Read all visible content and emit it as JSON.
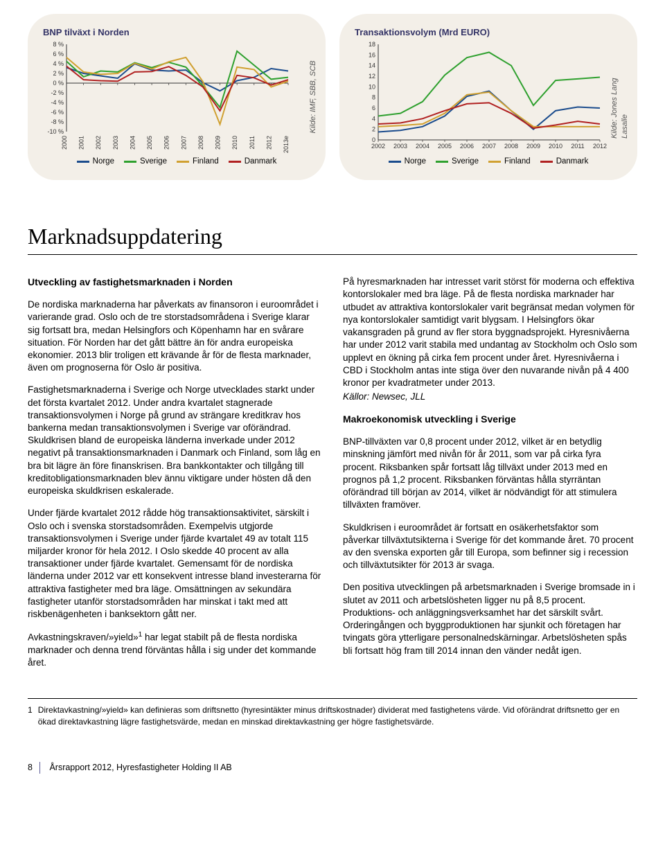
{
  "chart1": {
    "title": "BNP tilväxt i Norden",
    "source": "Kilde: IMF, SBB, SCB",
    "ylabels": [
      "8 %",
      "6 %",
      "4 %",
      "2 %",
      "0 %",
      "-2 %",
      "-4 %",
      "-6 %",
      "-8 %",
      "-10 %"
    ],
    "ymin": -10,
    "ymax": 8,
    "ystep": 2,
    "xlabels": [
      "2000",
      "2001",
      "2002",
      "2003",
      "2004",
      "2005",
      "2006",
      "2007",
      "2008",
      "2009",
      "2010",
      "2011",
      "2012",
      "2013e"
    ],
    "series": [
      {
        "name": "Norge",
        "color": "#1a4b8c",
        "values": [
          3.2,
          2.0,
          1.5,
          1.0,
          4.0,
          2.7,
          2.5,
          2.7,
          0.1,
          -1.6,
          0.5,
          1.2,
          3.0,
          2.5
        ]
      },
      {
        "name": "Sverige",
        "color": "#2ea02e",
        "values": [
          4.5,
          1.3,
          2.5,
          2.3,
          4.2,
          3.2,
          4.3,
          3.3,
          -0.6,
          -5.0,
          6.6,
          3.7,
          0.8,
          1.2
        ]
      },
      {
        "name": "Finland",
        "color": "#d0a030",
        "values": [
          5.3,
          2.3,
          1.8,
          2.0,
          4.1,
          2.9,
          4.4,
          5.3,
          0.3,
          -8.5,
          3.3,
          2.8,
          -0.8,
          0.4
        ]
      },
      {
        "name": "Danmark",
        "color": "#b02020",
        "values": [
          3.5,
          0.7,
          0.5,
          0.4,
          2.3,
          2.4,
          3.4,
          1.6,
          -0.8,
          -5.7,
          1.6,
          1.1,
          -0.4,
          0.7
        ]
      }
    ],
    "background_color": "#f3efe8",
    "grid_color": "#b8b2a4",
    "axis_color": "#333333",
    "label_fontsize": 9
  },
  "chart2": {
    "title": "Transaktionsvolym (Mrd EURO)",
    "source": "Kilde: Jones Lang Lasalle",
    "ylabels": [
      "18",
      "16",
      "14",
      "12",
      "10",
      "8",
      "6",
      "4",
      "2",
      "0"
    ],
    "ymin": 0,
    "ymax": 18,
    "ystep": 2,
    "xlabels": [
      "2002",
      "2003",
      "2004",
      "2005",
      "2006",
      "2007",
      "2008",
      "2009",
      "2010",
      "2011",
      "2012"
    ],
    "series": [
      {
        "name": "Norge",
        "color": "#1a4b8c",
        "values": [
          1.5,
          1.8,
          2.5,
          4.5,
          8.2,
          9.2,
          5.5,
          2.0,
          5.5,
          6.2,
          6.0
        ]
      },
      {
        "name": "Sverige",
        "color": "#2ea02e",
        "values": [
          4.5,
          5.0,
          7.2,
          12.2,
          15.5,
          16.5,
          14.0,
          6.5,
          11.2,
          11.5,
          11.8
        ]
      },
      {
        "name": "Finland",
        "color": "#d0a030",
        "values": [
          2.5,
          2.7,
          3.0,
          5.0,
          8.5,
          9.0,
          5.5,
          2.5,
          2.5,
          2.5,
          2.5
        ]
      },
      {
        "name": "Danmark",
        "color": "#b02020",
        "values": [
          3.0,
          3.2,
          4.0,
          5.5,
          6.8,
          7.0,
          5.0,
          2.2,
          2.8,
          3.5,
          3.0
        ]
      }
    ],
    "background_color": "#f3efe8",
    "grid_color": "#b8b2a4",
    "axis_color": "#333333",
    "label_fontsize": 9
  },
  "heading": "Marknadsuppdatering",
  "left_col": {
    "subhead": "Utveckling av fastighetsmarknaden i Norden",
    "p1": "De nordiska marknaderna har påverkats av finansoron i euroområdet i varierande grad. Oslo och de tre storstadsområdena i Sverige klarar sig fortsatt bra, medan Helsingfors och Köpenhamn har en svårare situation. För Norden har det gått bättre än för andra europeiska ekonomier. 2013 blir troligen ett krävande år för de flesta marknader, även om prognoserna för Oslo är positiva.",
    "p2": "Fastighetsmarknaderna i Sverige och Norge utvecklades starkt under det första kvartalet 2012. Under andra kvartalet stagnerade transaktionsvolymen i Norge på grund av strängare kreditkrav hos bankerna medan transaktionsvolymen i Sverige var oförändrad. Skuldkrisen bland de europeiska länderna inverkade under 2012 negativt på transaktionsmarknaden i Danmark och Finland, som låg en bra bit lägre än före finanskrisen. Bra bankkontakter och tillgång till kreditobligationsmarknaden blev ännu viktigare under hösten då den europeiska skuldkrisen eskalerade.",
    "p3": "Under fjärde kvartalet 2012 rådde hög transaktionsaktivitet, särskilt i Oslo och i svenska storstadsområden. Exempelvis utgjorde transaktionsvolymen i Sverige under fjärde kvartalet 49 av totalt 115 miljarder kronor för hela 2012. I Oslo skedde 40 procent av alla transaktioner under fjärde kvartalet. Gemensamt för de nordiska länderna under 2012 var ett konsekvent intresse bland investerarna för attraktiva fastigheter med bra läge. Omsättningen av sekundära fastigheter utanför storstadsområden har minskat i takt med att riskbenägenheten i banksektorn gått ner.",
    "p4_html": "Avkastningskraven/»yield»<sup>1</sup> har legat stabilt på de flesta nordiska marknader och denna trend förväntas hålla i sig under det kommande året."
  },
  "right_col": {
    "p1": "På hyresmarknaden har intresset varit störst för moderna och effektiva kontorslokaler med bra läge. På de flesta nordiska marknader har utbudet av attraktiva kontorslokaler varit begränsat medan volymen för nya kontorslokaler samtidigt varit blygsam. I Helsingfors ökar vakansgraden på grund av fler stora byggnadsprojekt. Hyresnivåerna har under 2012 varit stabila med undantag av Stockholm och Oslo som upplevt en ökning på cirka fem procent under året. Hyresnivåerna i CBD i Stockholm antas inte stiga över den nuvarande nivån på 4 400 kronor per kvadratmeter under 2013.",
    "p1_tail": "Källor: Newsec, JLL",
    "subhead2": "Makroekonomisk utveckling i Sverige",
    "p2": "BNP-tillväxten var 0,8 procent under 2012, vilket är en betydlig minskning jämfört med nivån för år 2011, som var på cirka fyra procent. Riksbanken spår fortsatt låg tillväxt under 2013 med en prognos på 1,2 procent. Riksbanken förväntas hålla styrräntan oförändrad till början av 2014, vilket är nödvändigt för att stimulera tillväxten framöver.",
    "p3": "Skuldkrisen i euroområdet är fortsatt en osäkerhetsfaktor som påverkar tillväxtutsikterna i Sverige för det kommande året. 70 procent av den svenska exporten går till Europa, som befinner sig i recession och tillväxtutsikter för 2013 är svaga.",
    "p4": "Den positiva utvecklingen på arbetsmarknaden i Sverige bromsade in i slutet av 2011 och arbetslösheten ligger nu på 8,5 procent. Produktions- och anläggningsverksamhet har det särskilt svårt. Orderingången och byggproduktionen har sjunkit och företagen har tvingats göra ytterligare personalnedskärningar. Arbetslösheten spås bli fortsatt hög fram till 2014 innan den vänder nedåt igen."
  },
  "footnote": {
    "num": "1",
    "text": "Direktavkastning/»yield» kan definieras som driftsnetto (hyresintäkter minus driftskostnader) dividerat med fastighetens värde. Vid oförändrat driftsnetto ger en ökad direktavkastning lägre fastighetsvärde, medan en minskad direktavkastning ger högre fastighetsvärde."
  },
  "footer": {
    "page": "8",
    "doc": "Årsrapport 2012, Hyresfastigheter Holding II AB"
  }
}
